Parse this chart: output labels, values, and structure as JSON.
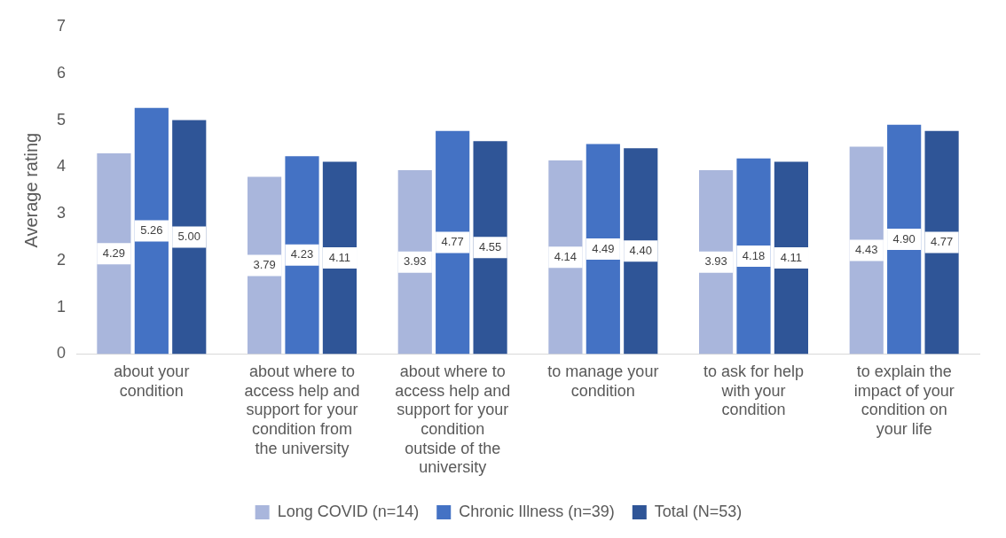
{
  "chart_data": {
    "type": "bar",
    "ylabel": "Average rating",
    "categories": [
      "about your condition",
      "about where to access help and support for your condition from the university",
      "about where to access help and support for your condition outside of the university",
      "to manage your condition",
      "to ask for help with your condition",
      "to explain the impact of your condition on your life"
    ],
    "series": [
      {
        "name": "Long COVID (n=14)",
        "color": "#a9b6dc",
        "values": [
          4.29,
          3.79,
          3.93,
          4.14,
          3.93,
          4.43
        ],
        "value_labels": [
          "4.29",
          "3.79",
          "3.93",
          "4.14",
          "3.93",
          "4.43"
        ]
      },
      {
        "name": "Chronic Illness (n=39)",
        "color": "#4472c4",
        "values": [
          5.26,
          4.23,
          4.77,
          4.49,
          4.18,
          4.9
        ],
        "value_labels": [
          "5.26",
          "4.23",
          "4.77",
          "4.49",
          "4.18",
          "4.90"
        ]
      },
      {
        "name": "Total (N=53)",
        "color": "#2f5597",
        "values": [
          5.0,
          4.11,
          4.55,
          4.4,
          4.11,
          4.77
        ],
        "value_labels": [
          "5.00",
          "4.11",
          "4.55",
          "4.40",
          "4.11",
          "4.77"
        ]
      }
    ],
    "ylim": [
      0,
      7
    ],
    "yticks": [
      0,
      1,
      2,
      3,
      4,
      5,
      6,
      7
    ],
    "grid": false,
    "legend": "bottom"
  }
}
